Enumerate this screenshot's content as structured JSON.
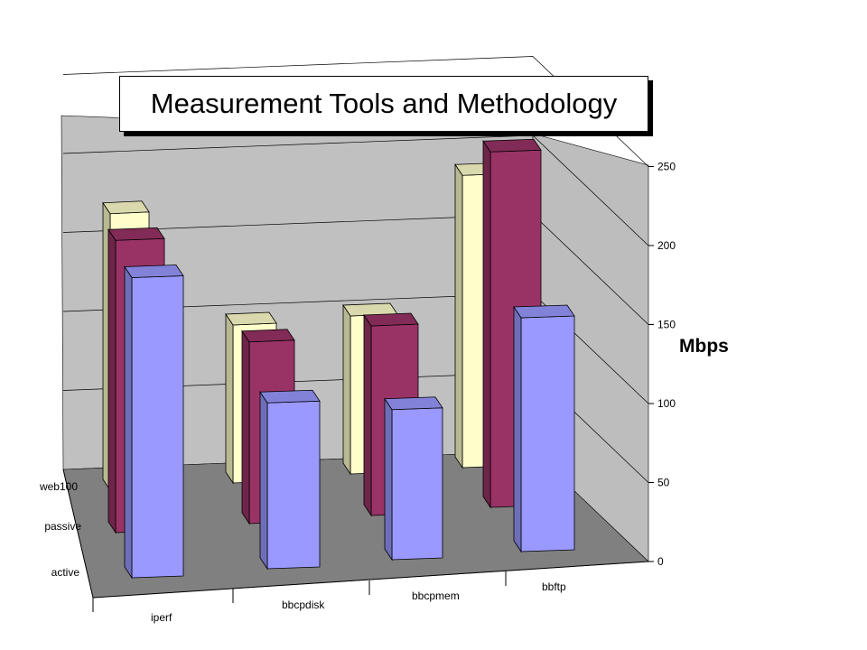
{
  "chart_data": {
    "type": "bar",
    "subtype": "3d-column",
    "title": "Measurement Tools and Methodology",
    "zlabel": "Mbps",
    "categories": [
      "iperf",
      "bbcpdisk",
      "bbcpmem",
      "bbftp"
    ],
    "series": [
      {
        "name": "web100",
        "values": [
          175,
          100,
          100,
          185
        ],
        "color": "#ffffcc"
      },
      {
        "name": "passive",
        "values": [
          185,
          115,
          120,
          225
        ],
        "color": "#993366"
      },
      {
        "name": "active",
        "values": [
          190,
          105,
          95,
          148
        ],
        "color": "#9999ff"
      }
    ],
    "zlim": [
      0,
      250
    ],
    "zticks": [
      "0",
      "50",
      "100",
      "150",
      "200",
      "250"
    ],
    "grid": true,
    "colors": {
      "wall": "#c0c0c0",
      "floor": "#808080"
    }
  }
}
